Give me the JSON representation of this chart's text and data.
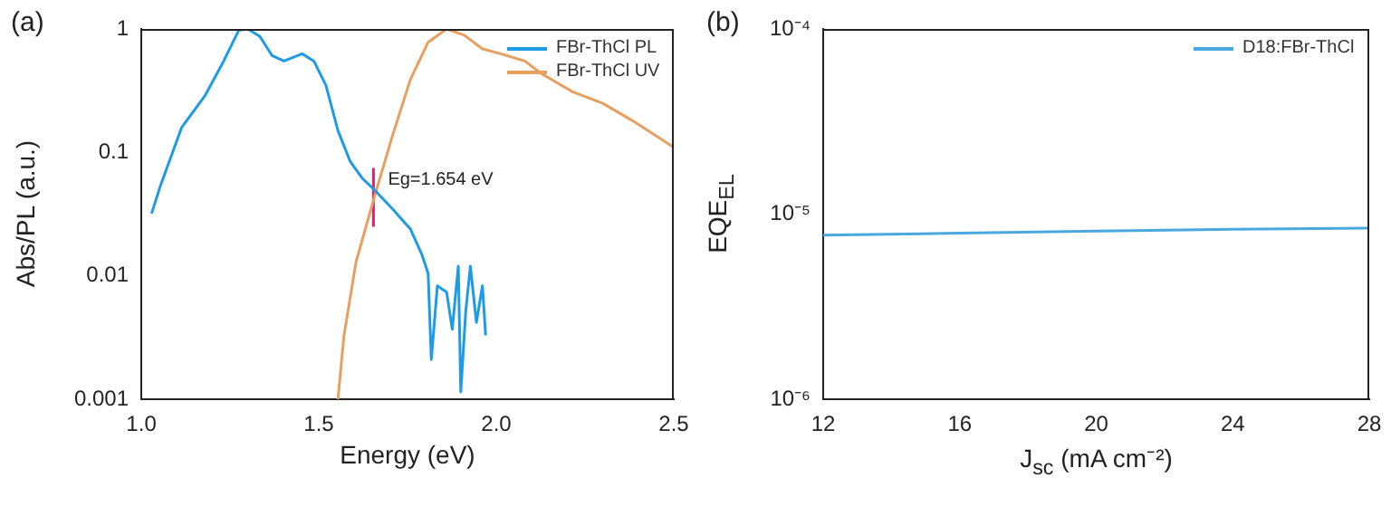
{
  "chart_data": [
    {
      "type": "line",
      "title": "(a)",
      "xlabel": "Energy (eV)",
      "ylabel": "Abs/PL (a.u.)",
      "log": "y",
      "legend": "top right",
      "xlim": [
        1.0,
        2.5
      ],
      "xticks": [
        {
          "value": 1,
          "label": "1.0"
        },
        {
          "value": 1.5,
          "label": "1.5"
        },
        {
          "value": 2,
          "label": "2.0"
        },
        {
          "value": 2.5,
          "label": "2.5"
        }
      ],
      "ylim": [
        0.001,
        1
      ],
      "yticks": [
        0.001,
        0.01,
        0.1,
        1
      ],
      "annotations": [
        {
          "text": "Eg=1.654 eV",
          "x": 1.654,
          "y": 0.05
        }
      ],
      "series": [
        {
          "name": "FBr-ThCl PL",
          "color": "#1e9be6",
          "x": [
            1.029,
            1.054,
            1.114,
            1.18,
            1.232,
            1.275,
            1.3,
            1.334,
            1.368,
            1.402,
            1.453,
            1.486,
            1.52,
            1.554,
            1.588,
            1.622,
            1.656,
            1.707,
            1.758,
            1.79,
            1.808,
            1.817,
            1.834,
            1.86,
            1.876,
            1.893,
            1.9,
            1.914,
            1.927,
            1.944,
            1.961,
            1.97
          ],
          "values": [
            0.032,
            0.054,
            0.16,
            0.29,
            0.55,
            0.98,
            1.0,
            0.87,
            0.61,
            0.55,
            0.63,
            0.55,
            0.35,
            0.15,
            0.085,
            0.062,
            0.05,
            0.035,
            0.024,
            0.015,
            0.0105,
            0.0021,
            0.0083,
            0.0074,
            0.0037,
            0.012,
            0.00115,
            0.0052,
            0.012,
            0.0042,
            0.0083,
            0.0033
          ]
        },
        {
          "name": "FBr-ThCl UV",
          "color": "#e8a060",
          "x": [
            1.554,
            1.571,
            1.605,
            1.656,
            1.707,
            1.758,
            1.808,
            1.86,
            1.91,
            1.961,
            2.012,
            2.08,
            2.13,
            2.215,
            2.3,
            2.385,
            2.5
          ],
          "values": [
            0.001,
            0.0033,
            0.013,
            0.043,
            0.135,
            0.39,
            0.78,
            1.0,
            0.89,
            0.69,
            0.63,
            0.55,
            0.43,
            0.31,
            0.25,
            0.18,
            0.11
          ]
        },
        {
          "color": "#e0206f",
          "x": [
            1.654,
            1.654
          ],
          "values": [
            0.025,
            0.075
          ]
        }
      ]
    },
    {
      "type": "line",
      "title": "(b)",
      "xlabel": "J$_{sc}$ (mA cm⁻²)",
      "ylabel": "EQE$_{EL}$",
      "log": "y",
      "legend": "top right",
      "xlim": [
        12,
        28
      ],
      "xticks": [
        12,
        16,
        20,
        24,
        28
      ],
      "ylim": [
        1e-06,
        0.0001
      ],
      "yticks": [
        {
          "value": 1e-06,
          "label": "10⁻⁶"
        },
        {
          "value": 1e-05,
          "label": "10⁻⁵"
        },
        {
          "value": 0.0001,
          "label": "10⁻⁴"
        }
      ],
      "series": [
        {
          "name": "D18:FBr-ThCl",
          "color": "#4aa8e0",
          "x": [
            12,
            16,
            20,
            24,
            28
          ],
          "values": [
            7.7e-06,
            7.9e-06,
            8.1e-06,
            8.3e-06,
            8.4e-06
          ]
        }
      ]
    }
  ]
}
